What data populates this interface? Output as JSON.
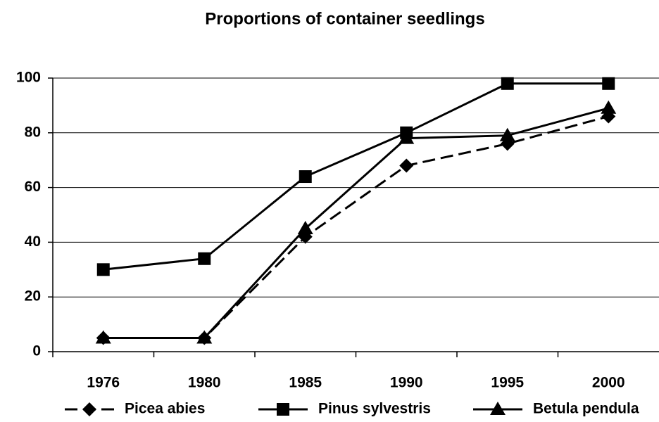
{
  "chart_data": {
    "type": "line",
    "title": "Proportions of container seedlings",
    "categories": [
      "1976",
      "1980",
      "1985",
      "1990",
      "1995",
      "2000"
    ],
    "series": [
      {
        "name": "Picea abies",
        "color": "#000000",
        "marker": "diamond",
        "dashed": true,
        "values": [
          5,
          5,
          42,
          68,
          76,
          86
        ]
      },
      {
        "name": "Pinus sylvestris",
        "color": "#000000",
        "marker": "square",
        "dashed": false,
        "values": [
          30,
          34,
          64,
          80,
          98,
          98
        ]
      },
      {
        "name": "Betula pendula",
        "color": "#000000",
        "marker": "triangle",
        "dashed": false,
        "values": [
          5,
          5,
          45,
          78,
          79,
          89
        ]
      }
    ],
    "ylim": [
      0,
      100
    ],
    "yticks": [
      0,
      20,
      40,
      60,
      80,
      100
    ],
    "grid": true,
    "legend": "bottom"
  }
}
